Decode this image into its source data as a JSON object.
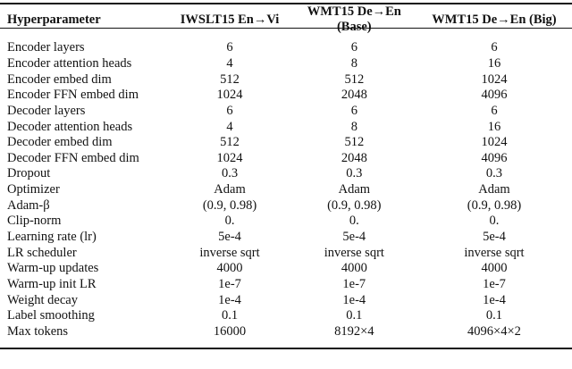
{
  "table": {
    "headers": [
      "Hyperparameter",
      "IWSLT15 En→Vi",
      "WMT15 De→En (Base)",
      "WMT15 De→En (Big)"
    ],
    "rows": [
      [
        "Encoder layers",
        "6",
        "6",
        "6"
      ],
      [
        "Encoder attention heads",
        "4",
        "8",
        "16"
      ],
      [
        "Encoder embed dim",
        "512",
        "512",
        "1024"
      ],
      [
        "Encoder FFN embed dim",
        "1024",
        "2048",
        "4096"
      ],
      [
        "Decoder layers",
        "6",
        "6",
        "6"
      ],
      [
        "Decoder attention heads",
        "4",
        "8",
        "16"
      ],
      [
        "Decoder embed dim",
        "512",
        "512",
        "1024"
      ],
      [
        "Decoder FFN embed dim",
        "1024",
        "2048",
        "4096"
      ],
      [
        "Dropout",
        "0.3",
        "0.3",
        "0.3"
      ],
      [
        "Optimizer",
        "Adam",
        "Adam",
        "Adam"
      ],
      [
        "Adam-β",
        "(0.9, 0.98)",
        "(0.9, 0.98)",
        "(0.9, 0.98)"
      ],
      [
        "Clip-norm",
        "0.",
        "0.",
        "0."
      ],
      [
        "Learning rate (lr)",
        "5e-4",
        "5e-4",
        "5e-4"
      ],
      [
        "LR scheduler",
        "inverse sqrt",
        "inverse sqrt",
        "inverse sqrt"
      ],
      [
        "Warm-up updates",
        "4000",
        "4000",
        "4000"
      ],
      [
        "Warm-up init LR",
        "1e-7",
        "1e-7",
        "1e-7"
      ],
      [
        "Weight decay",
        "1e-4",
        "1e-4",
        "1e-4"
      ],
      [
        "Label smoothing",
        "0.1",
        "0.1",
        "0.1"
      ],
      [
        "Max tokens",
        "16000",
        "8192×4",
        "4096×4×2"
      ]
    ]
  }
}
